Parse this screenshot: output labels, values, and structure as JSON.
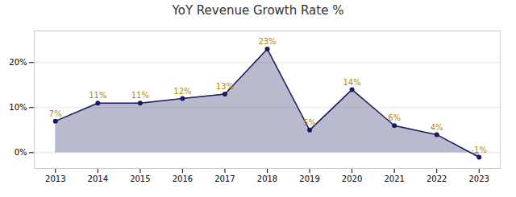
{
  "chart_data": {
    "type": "area",
    "title": "YoY Revenue Growth Rate %",
    "x": [
      2013,
      2014,
      2015,
      2016,
      2017,
      2018,
      2019,
      2020,
      2021,
      2022,
      2023
    ],
    "values": [
      7,
      11,
      11,
      12,
      13,
      23,
      5,
      14,
      6,
      4,
      -1
    ],
    "value_labels": [
      "7%",
      "11%",
      "11%",
      "12%",
      "13%",
      "23%",
      "5%",
      "14%",
      "6%",
      "4%",
      "-1%"
    ],
    "color": "#1a1a5e",
    "marker": "circle",
    "data_labels": true,
    "xlim": [
      2012.5,
      2023.5
    ],
    "xticks": [
      2013,
      2014,
      2015,
      2016,
      2017,
      2018,
      2019,
      2020,
      2021,
      2022,
      2023
    ],
    "ylim": [
      -3.5,
      27
    ],
    "yticks": [
      {
        "value": 0,
        "label": "0%"
      },
      {
        "value": 10,
        "label": "10%"
      },
      {
        "value": 20,
        "label": "20%"
      }
    ],
    "grid": true
  }
}
